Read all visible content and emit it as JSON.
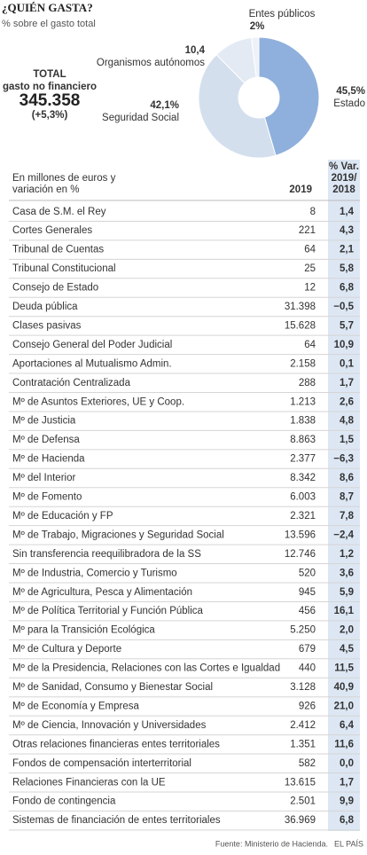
{
  "header": {
    "title": "¿QUIÉN GASTA?",
    "subtitle": "% sobre el gasto total"
  },
  "total": {
    "label": "TOTAL",
    "sublabel": "gasto no financiero",
    "value": "345.358",
    "change": "(+5,3%)"
  },
  "chart_data": {
    "type": "donut",
    "categories": [
      "Estado",
      "Seguridad Social",
      "Organismos autónomos",
      "Entes públicos"
    ],
    "values": [
      45.5,
      42.1,
      10.4,
      2
    ],
    "value_labels": [
      "45,5%",
      "42,1%",
      "10,4",
      "2%"
    ],
    "colors": [
      "#8fb0dc",
      "#d4dfee",
      "#e3eaf4",
      "#eef2f8"
    ]
  },
  "table": {
    "header": [
      "En millones de euros y variación en %",
      "2019",
      "% Var. 2019/ 2018"
    ],
    "rows": [
      [
        "Casa de S.M. el Rey",
        "8",
        "1,4"
      ],
      [
        "Cortes Generales",
        "221",
        "4,3"
      ],
      [
        "Tribunal de Cuentas",
        "64",
        "2,1"
      ],
      [
        "Tribunal Constitucional",
        "25",
        "5,8"
      ],
      [
        "Consejo de Estado",
        "12",
        "6,8"
      ],
      [
        "Deuda pública",
        "31.398",
        "−0,5"
      ],
      [
        "Clases pasivas",
        "15.628",
        "5,7"
      ],
      [
        "Consejo General del Poder Judicial",
        "64",
        "10,9"
      ],
      [
        "Aportaciones al Mutualismo Admin.",
        "2.158",
        "0,1"
      ],
      [
        "Contratación Centralizada",
        "288",
        "1,7"
      ],
      [
        "Mº de Asuntos Exteriores, UE y Coop.",
        "1.213",
        "2,6"
      ],
      [
        "Mº de Justicia",
        "1.838",
        "4,8"
      ],
      [
        "Mº de Defensa",
        "8.863",
        "1,5"
      ],
      [
        "Mº de Hacienda",
        "2.377",
        "−6,3"
      ],
      [
        "Mº del Interior",
        "8.342",
        "8,6"
      ],
      [
        "Mº de Fomento",
        "6.003",
        "8,7"
      ],
      [
        "Mº de Educación y FP",
        "2.321",
        "7,8"
      ],
      [
        "Mº de Trabajo, Migraciones y Seguridad Social",
        "13.596",
        "−2,4"
      ],
      [
        "Sin transferencia reequilibradora de la SS",
        "12.746",
        "1,2"
      ],
      [
        "Mº de Industria, Comercio y Turismo",
        "520",
        "3,6"
      ],
      [
        "Mº de Agricultura, Pesca y Alimentación",
        "945",
        "5,9"
      ],
      [
        "Mº de Política Territorial y Función Pública",
        "456",
        "16,1"
      ],
      [
        "Mº para la Transición Ecológica",
        "5.250",
        "2,0"
      ],
      [
        "Mº de Cultura y Deporte",
        "679",
        "4,5"
      ],
      [
        "Mº de la Presidencia, Relaciones con las Cortes e Igualdad",
        "440",
        "11,5"
      ],
      [
        "Mº de Sanidad, Consumo y Bienestar Social",
        "3.128",
        "40,9"
      ],
      [
        "Mº de Economía y Empresa",
        "926",
        "21,0"
      ],
      [
        "Mº de Ciencia, Innovación y Universidades",
        "2.412",
        "6,4"
      ],
      [
        "Otras relaciones financieras entes territoriales",
        "1.351",
        "11,6"
      ],
      [
        "Fondos de compensación interterritorial",
        "582",
        "0,0"
      ],
      [
        "Relaciones Financieras con la UE",
        "13.615",
        "1,7"
      ],
      [
        "Fondo de contingencia",
        "2.501",
        "9,9"
      ],
      [
        "Sistemas de financiación de entes territoriales",
        "36.969",
        "6,8"
      ]
    ]
  },
  "footer": {
    "source": "Fuente: Ministerio de Hacienda.",
    "brand": "EL PAÍS"
  }
}
